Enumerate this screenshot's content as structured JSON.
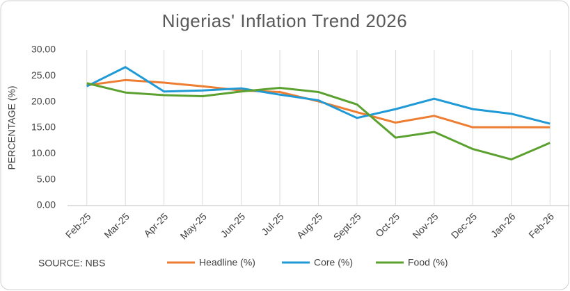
{
  "chart_data": {
    "type": "line",
    "title": "Nigerias' Inflation Trend 2026",
    "y_label": "PERCENTAGE (%)",
    "annotation": "SOURCE: NBS",
    "categories": [
      "Feb-25",
      "Mar-25",
      "Apr-25",
      "May-25",
      "Jun-25",
      "Jul-25",
      "Aug-25",
      "Sept-25",
      "Oct-25",
      "Nov-25",
      "Dec-25",
      "Jan-26",
      "Feb-26"
    ],
    "series": [
      {
        "name": "Headline (%)",
        "color": "#ED7D31",
        "values": [
          23.2,
          24.2,
          23.7,
          23.0,
          22.2,
          21.9,
          20.1,
          18.0,
          16.0,
          17.3,
          15.1,
          15.1,
          15.1
        ]
      },
      {
        "name": "Core (%)",
        "color": "#1F9AD6",
        "values": [
          23.0,
          26.7,
          22.0,
          22.2,
          22.6,
          21.4,
          20.3,
          16.9,
          18.6,
          20.6,
          18.6,
          17.7,
          15.8
        ]
      },
      {
        "name": "Food (%)",
        "color": "#5BA12F",
        "values": [
          23.6,
          21.8,
          21.3,
          21.1,
          22.0,
          22.7,
          21.9,
          19.5,
          13.1,
          14.2,
          10.9,
          8.9,
          12.1
        ]
      }
    ],
    "ylim": [
      0,
      30
    ],
    "yticks": [
      {
        "value": 0,
        "label": "0.00"
      },
      {
        "value": 5,
        "label": "5.00"
      },
      {
        "value": 10,
        "label": "10.00"
      },
      {
        "value": 15,
        "label": "15.00"
      },
      {
        "value": 20,
        "label": "20.00"
      },
      {
        "value": 25,
        "label": "25.00"
      },
      {
        "value": 30,
        "label": "30.00"
      }
    ],
    "grid": true,
    "legend": "bottom"
  }
}
